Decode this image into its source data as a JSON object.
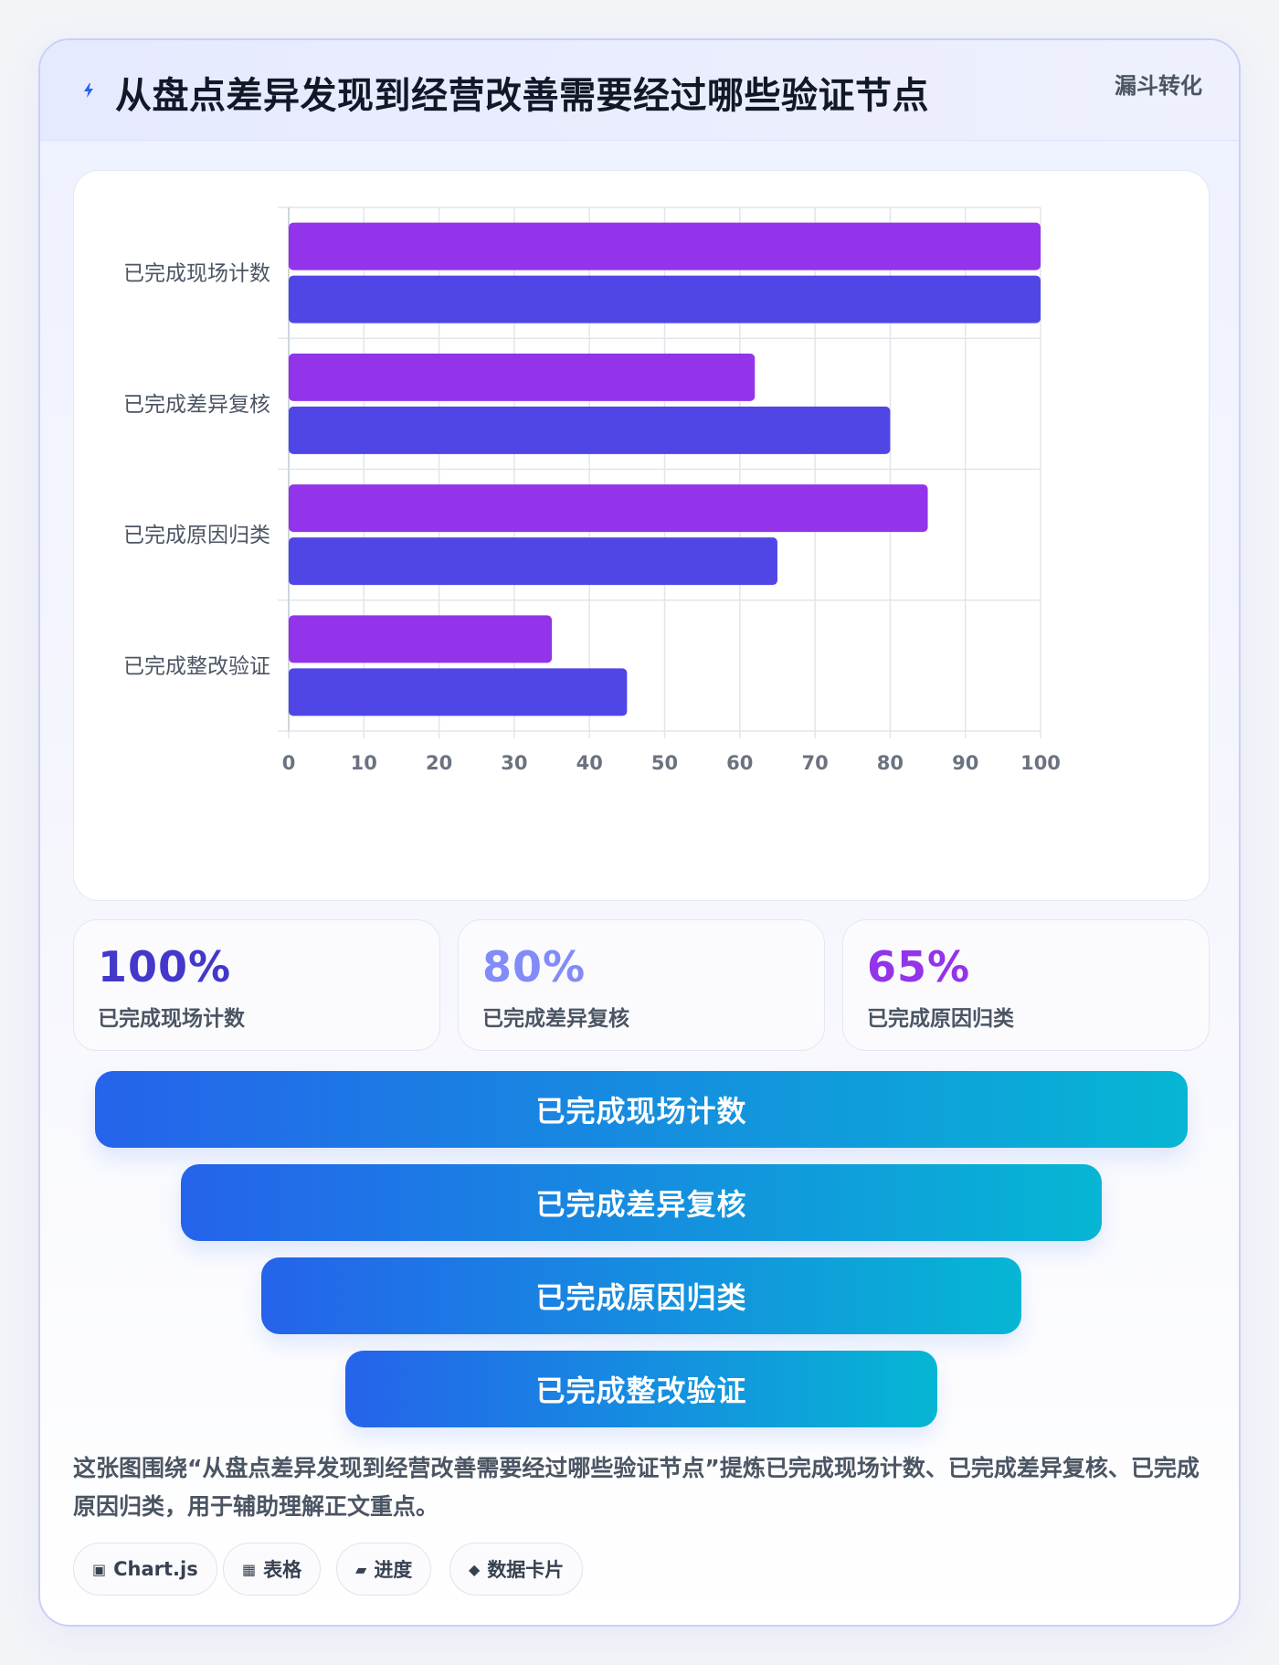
{
  "header": {
    "title": "从盘点差异发现到经营改善需要经过哪些验证节点",
    "tag": "漏斗转化",
    "icon": "lightning-icon"
  },
  "chart_data": {
    "type": "bar",
    "orientation": "horizontal",
    "categories": [
      "已完成现场计数",
      "已完成差异复核",
      "已完成原因归类",
      "已完成整改验证"
    ],
    "series": [
      {
        "values": [
          100,
          62,
          85,
          35
        ],
        "color": "#9333ea"
      },
      {
        "values": [
          100,
          80,
          65,
          45
        ],
        "color": "#4f46e5"
      }
    ],
    "xlim": [
      0,
      100
    ],
    "xticks": [
      0,
      10,
      20,
      30,
      40,
      50,
      60,
      70,
      80,
      90,
      100
    ],
    "grid": true,
    "legend": "none"
  },
  "stats": [
    {
      "value": "100%",
      "label": "已完成现场计数",
      "color": "#4338ca"
    },
    {
      "value": "80%",
      "label": "已完成差异复核",
      "color": "#818cf8"
    },
    {
      "value": "65%",
      "label": "已完成原因归类",
      "color": "#9333ea"
    }
  ],
  "funnel": [
    {
      "label": "已完成现场计数"
    },
    {
      "label": "已完成差异复核"
    },
    {
      "label": "已完成原因归类"
    },
    {
      "label": "已完成整改验证"
    }
  ],
  "summary": "这张图围绕“从盘点差异发现到经营改善需要经过哪些验证节点”提炼已完成现场计数、已完成差异复核、已完成原因归类，用于辅助理解正文重点。",
  "chips": [
    {
      "icon": "▣",
      "icon_name": "chart-icon",
      "label": "Chart.js"
    },
    {
      "icon": "▦",
      "icon_name": "table-icon",
      "label": "表格"
    },
    {
      "icon": "▰",
      "icon_name": "progress-icon",
      "label": "进度"
    },
    {
      "icon": "◆",
      "icon_name": "card-icon",
      "label": "数据卡片"
    }
  ]
}
